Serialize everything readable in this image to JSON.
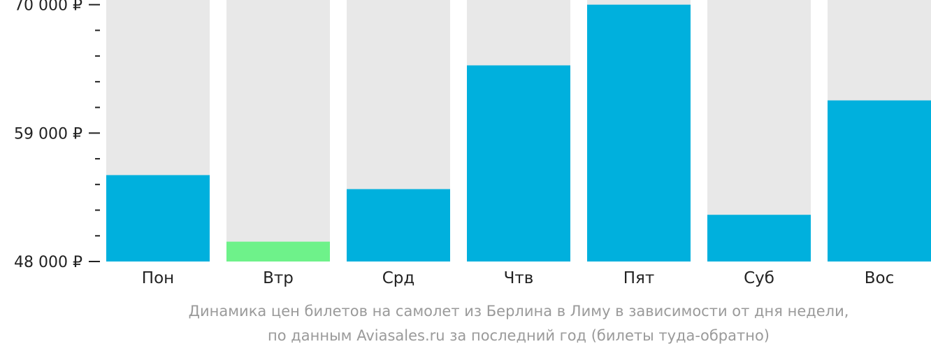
{
  "chart_data": {
    "type": "bar",
    "categories": [
      "Пон",
      "Втр",
      "Срд",
      "Чтв",
      "Пят",
      "Суб",
      "Вос"
    ],
    "values": [
      55400,
      49700,
      54200,
      64800,
      70000,
      52000,
      61800
    ],
    "highlight_index": 1,
    "ylim": [
      48000,
      70400
    ],
    "y_major_ticks": [
      {
        "value": 48000,
        "label": "48 000 ₽"
      },
      {
        "value": 59000,
        "label": "59 000 ₽"
      },
      {
        "value": 70000,
        "label": "70 000 ₽"
      }
    ],
    "y_minor_step": 2200,
    "colors": {
      "bar": "#00b0dd",
      "highlight": "#6ef28a",
      "track": "#e8e8e8",
      "axis_text": "#222222",
      "caption": "#9a9a9a"
    },
    "caption_lines": [
      "Динамика цен билетов на самолет из Берлина в Лиму в зависимости от дня недели,",
      "по данным Aviasales.ru за последний год (билеты туда-обратно)"
    ]
  }
}
